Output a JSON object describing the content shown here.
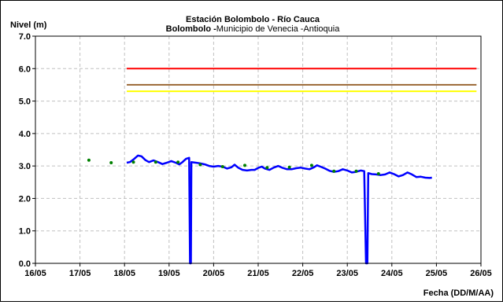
{
  "chart_data": {
    "type": "line",
    "title_bold": "Estación Bolombolo - Río Cauca",
    "subtitle_bold": "Bolombolo -",
    "subtitle_regular": "Municipio de Venecia -Antioquia",
    "ylabel": "Nivel (m)",
    "xlabel": "Fecha (DD/M/AA)",
    "ylim": [
      0,
      7
    ],
    "yticks": [
      "0.0",
      "1.0",
      "2.0",
      "3.0",
      "4.0",
      "5.0",
      "6.0",
      "7.0"
    ],
    "xlim": [
      0,
      10
    ],
    "xticks": [
      "16/05",
      "17/05",
      "18/05",
      "19/05",
      "20/05",
      "21/05",
      "22/05",
      "23/05",
      "24/05",
      "25/05",
      "26/05"
    ],
    "grid": true,
    "thresholds": [
      {
        "value": 6.0,
        "x_from": 2.05,
        "x_to": 9.9,
        "color": "#ff0000"
      },
      {
        "value": 5.5,
        "x_from": 2.05,
        "x_to": 9.9,
        "color": "#996633"
      },
      {
        "value": 5.3,
        "x_from": 2.05,
        "x_to": 9.9,
        "color": "#ffff00"
      }
    ],
    "series": [
      {
        "kind": "line",
        "color": "#0000ff",
        "points": [
          [
            2.05,
            3.1
          ],
          [
            2.12,
            3.12
          ],
          [
            2.2,
            3.2
          ],
          [
            2.3,
            3.32
          ],
          [
            2.38,
            3.3
          ],
          [
            2.47,
            3.18
          ],
          [
            2.55,
            3.12
          ],
          [
            2.65,
            3.17
          ],
          [
            2.75,
            3.12
          ],
          [
            2.85,
            3.06
          ],
          [
            2.95,
            3.1
          ],
          [
            3.05,
            3.15
          ],
          [
            3.15,
            3.1
          ],
          [
            3.23,
            3.05
          ],
          [
            3.3,
            3.12
          ],
          [
            3.38,
            3.22
          ],
          [
            3.45,
            3.25
          ],
          [
            3.47,
            0.0
          ],
          [
            3.49,
            0.0
          ],
          [
            3.5,
            3.12
          ],
          [
            3.6,
            3.1
          ],
          [
            3.7,
            3.08
          ],
          [
            3.8,
            3.05
          ],
          [
            3.9,
            3.0
          ],
          [
            4.0,
            2.98
          ],
          [
            4.1,
            3.0
          ],
          [
            4.2,
            2.98
          ],
          [
            4.3,
            2.92
          ],
          [
            4.4,
            2.96
          ],
          [
            4.47,
            3.04
          ],
          [
            4.55,
            2.95
          ],
          [
            4.65,
            2.88
          ],
          [
            4.75,
            2.86
          ],
          [
            4.85,
            2.88
          ],
          [
            4.92,
            2.88
          ],
          [
            5.0,
            2.94
          ],
          [
            5.08,
            2.98
          ],
          [
            5.15,
            2.92
          ],
          [
            5.25,
            2.88
          ],
          [
            5.35,
            2.95
          ],
          [
            5.45,
            3.0
          ],
          [
            5.55,
            2.94
          ],
          [
            5.65,
            2.9
          ],
          [
            5.75,
            2.9
          ],
          [
            5.85,
            2.93
          ],
          [
            5.95,
            2.95
          ],
          [
            6.05,
            2.92
          ],
          [
            6.15,
            2.9
          ],
          [
            6.25,
            2.96
          ],
          [
            6.32,
            3.02
          ],
          [
            6.4,
            2.98
          ],
          [
            6.5,
            2.92
          ],
          [
            6.6,
            2.85
          ],
          [
            6.7,
            2.82
          ],
          [
            6.8,
            2.84
          ],
          [
            6.9,
            2.9
          ],
          [
            7.0,
            2.86
          ],
          [
            7.1,
            2.8
          ],
          [
            7.2,
            2.82
          ],
          [
            7.3,
            2.86
          ],
          [
            7.38,
            2.84
          ],
          [
            7.42,
            0.0
          ],
          [
            7.45,
            0.0
          ],
          [
            7.47,
            2.78
          ],
          [
            7.55,
            2.75
          ],
          [
            7.65,
            2.74
          ],
          [
            7.75,
            2.72
          ],
          [
            7.85,
            2.74
          ],
          [
            7.95,
            2.8
          ],
          [
            8.05,
            2.75
          ],
          [
            8.15,
            2.68
          ],
          [
            8.25,
            2.72
          ],
          [
            8.35,
            2.8
          ],
          [
            8.45,
            2.74
          ],
          [
            8.55,
            2.66
          ],
          [
            8.65,
            2.67
          ],
          [
            8.75,
            2.64
          ],
          [
            8.85,
            2.63
          ],
          [
            8.9,
            2.64
          ]
        ]
      },
      {
        "kind": "scatter",
        "color": "#008000",
        "points": [
          [
            1.2,
            3.18
          ],
          [
            1.7,
            3.1
          ],
          [
            2.2,
            3.12
          ],
          [
            2.7,
            3.12
          ],
          [
            3.2,
            3.12
          ],
          [
            3.7,
            3.04
          ],
          [
            4.2,
            2.98
          ],
          [
            4.7,
            3.02
          ],
          [
            5.2,
            2.95
          ],
          [
            5.7,
            2.96
          ],
          [
            6.2,
            3.02
          ],
          [
            6.7,
            2.84
          ],
          [
            7.2,
            2.84
          ],
          [
            7.7,
            2.76
          ]
        ]
      }
    ]
  }
}
